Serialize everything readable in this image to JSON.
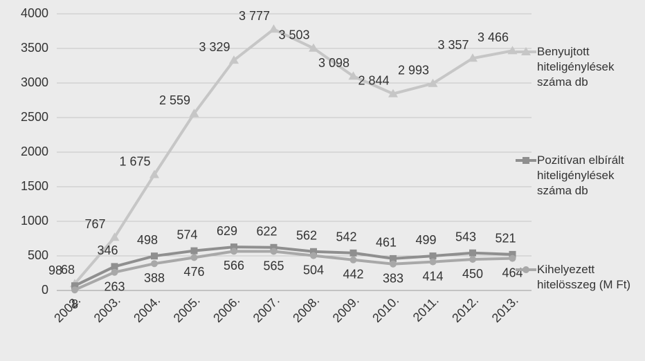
{
  "chart_data": {
    "type": "line",
    "categories": [
      "2002.",
      "2003.",
      "2004.",
      "2005.",
      "2006.",
      "2007.",
      "2008.",
      "2009.",
      "2010.",
      "2011.",
      "2012.",
      "2013."
    ],
    "series": [
      {
        "name": "Benyujtott hiteligénylések száma db",
        "color": "#c6c6c6",
        "marker": "triangle",
        "values": [
          98,
          767,
          1675,
          2559,
          3329,
          3777,
          3503,
          3098,
          2844,
          2993,
          3357,
          3466
        ],
        "value_labels": [
          "98",
          "767",
          "1 675",
          "2 559",
          "3 329",
          "3 777",
          "3 503",
          "3 098",
          "2 844",
          "2 993",
          "3 357",
          "3 466"
        ]
      },
      {
        "name": "Pozitívan elbírált hiteligénylések száma db",
        "color": "#8f8f8f",
        "marker": "square",
        "values": [
          68,
          346,
          498,
          574,
          629,
          622,
          562,
          542,
          461,
          499,
          543,
          521
        ],
        "value_labels": [
          "68",
          "346",
          "498",
          "574",
          "629",
          "622",
          "562",
          "542",
          "461",
          "499",
          "543",
          "521"
        ]
      },
      {
        "name": "Kihelyezett hitelösszeg (M Ft)",
        "color": "#a8a8a8",
        "marker": "circle",
        "values": [
          8,
          263,
          388,
          476,
          566,
          565,
          504,
          442,
          383,
          414,
          450,
          464
        ],
        "value_labels": [
          "8",
          "263",
          "388",
          "476",
          "566",
          "565",
          "504",
          "442",
          "383",
          "414",
          "450",
          "464"
        ]
      }
    ],
    "ylim": [
      0,
      4000
    ],
    "yticks": [
      0,
      500,
      1000,
      1500,
      2000,
      2500,
      3000,
      3500,
      4000
    ],
    "grid": true,
    "legend": "right"
  }
}
